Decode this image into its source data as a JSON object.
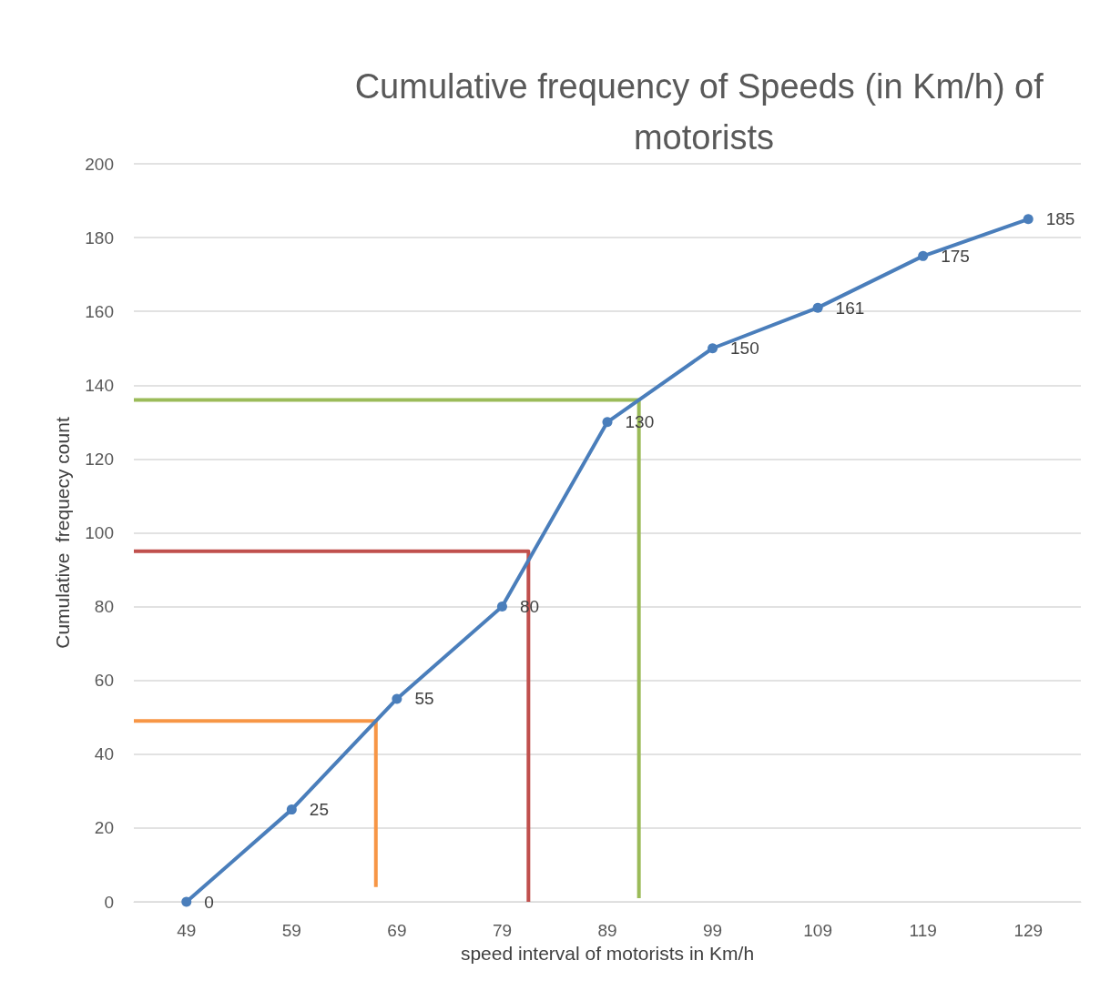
{
  "chart_data": {
    "type": "line",
    "title": "Cumulative frequency of Speeds (in Km/h) of motorists",
    "xlabel": "speed interval of motorists in Km/h",
    "ylabel": "Cumulative  frequecy count",
    "x": [
      49,
      59,
      69,
      79,
      89,
      99,
      109,
      119,
      129
    ],
    "xlim": [
      44,
      134
    ],
    "xticks": [
      49,
      59,
      69,
      79,
      89,
      99,
      109,
      119,
      129
    ],
    "ylim": [
      0,
      200
    ],
    "yticks": [
      0,
      20,
      40,
      60,
      80,
      100,
      120,
      140,
      160,
      180,
      200
    ],
    "grid": "y",
    "marker": "circle",
    "series": [
      {
        "color": "#4a7ebb",
        "values": [
          0,
          25,
          55,
          80,
          130,
          150,
          161,
          175,
          185
        ],
        "value_labels": [
          "0",
          "25",
          "55",
          "80",
          "130",
          "150",
          "161",
          "175",
          "185"
        ]
      },
      {
        "type": "line",
        "marker": "none",
        "color": "#f79646",
        "x": [
          44,
          67,
          67
        ],
        "values": [
          49,
          49,
          4
        ]
      },
      {
        "type": "line",
        "marker": "none",
        "color": "#c0504d",
        "x": [
          44,
          81.5,
          81.5
        ],
        "values": [
          95,
          95,
          0
        ]
      },
      {
        "type": "line",
        "marker": "none",
        "color": "#9bbb59",
        "x": [
          44,
          92,
          92
        ],
        "values": [
          136,
          136,
          1
        ]
      }
    ]
  }
}
